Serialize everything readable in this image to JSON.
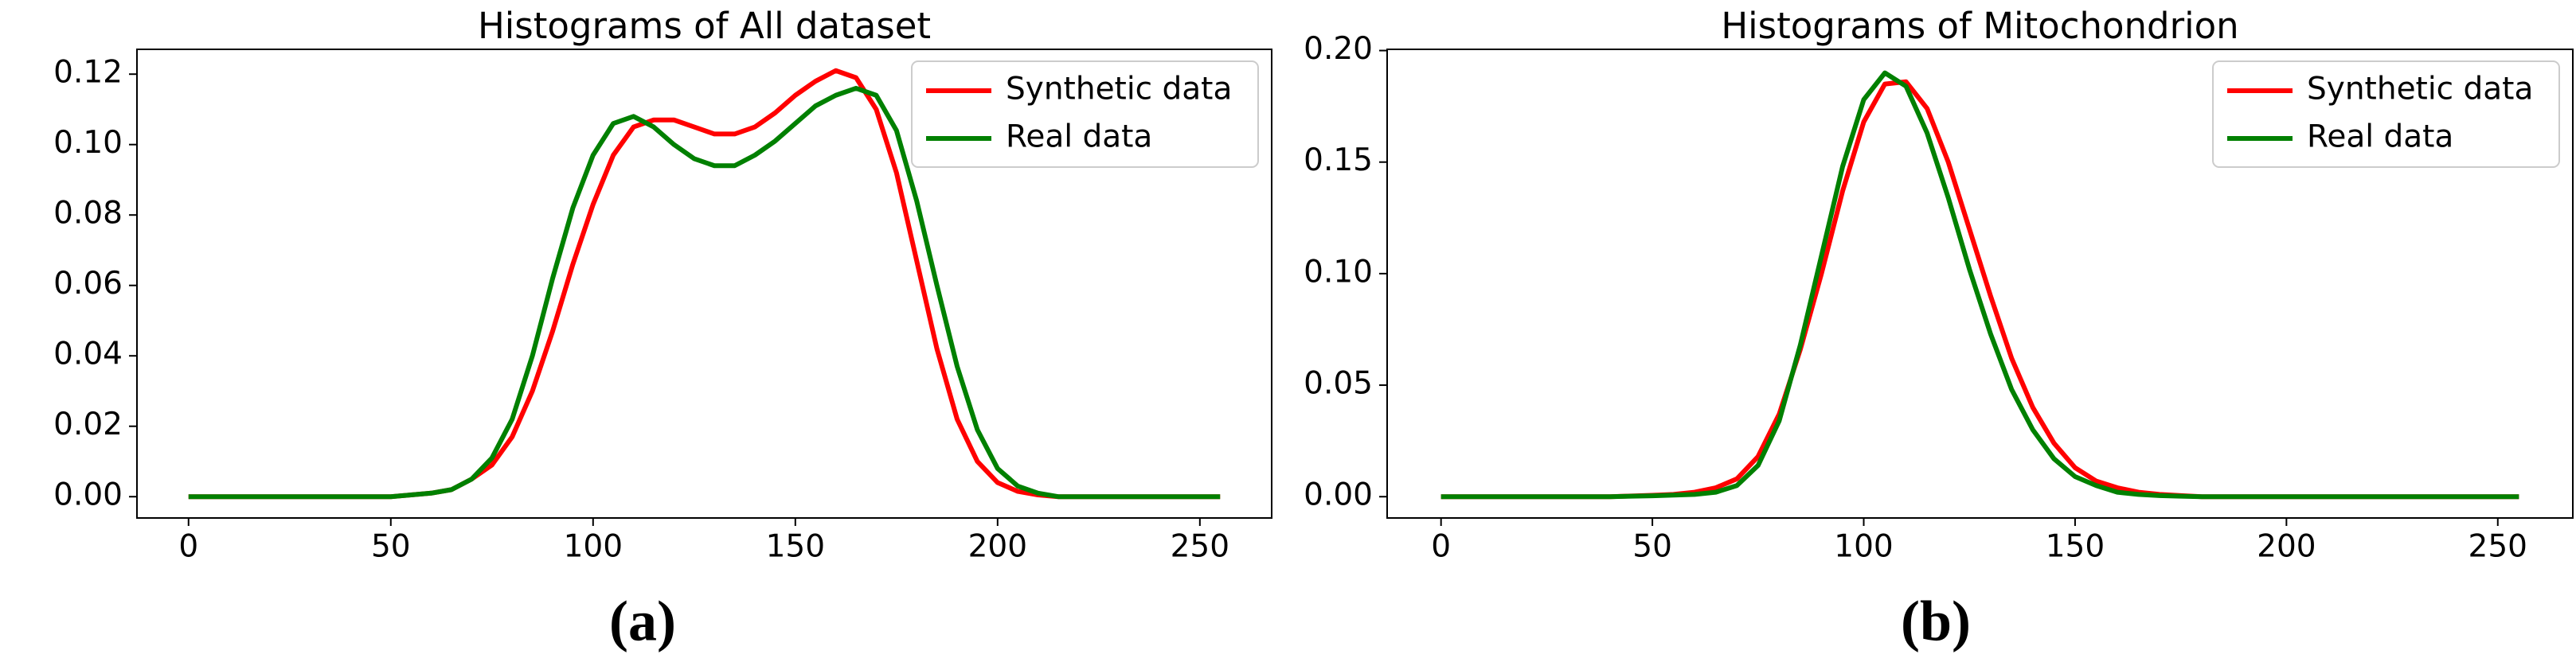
{
  "chart_data": [
    {
      "type": "line",
      "title": "Histograms of All dataset",
      "panel_label": "(a)",
      "x": [
        0,
        5,
        10,
        15,
        20,
        25,
        30,
        35,
        40,
        45,
        50,
        55,
        60,
        65,
        70,
        75,
        80,
        85,
        90,
        95,
        100,
        105,
        110,
        115,
        120,
        125,
        130,
        135,
        140,
        145,
        150,
        155,
        160,
        165,
        170,
        175,
        180,
        185,
        190,
        195,
        200,
        205,
        210,
        215,
        220,
        225,
        230,
        235,
        240,
        245,
        250,
        255
      ],
      "series": [
        {
          "name": "Synthetic data",
          "color": "#ff0000",
          "values": [
            0,
            0,
            0,
            0,
            0,
            0,
            0,
            0,
            0,
            0,
            0,
            0.0005,
            0.001,
            0.002,
            0.005,
            0.009,
            0.017,
            0.03,
            0.047,
            0.066,
            0.083,
            0.097,
            0.105,
            0.107,
            0.107,
            0.105,
            0.103,
            0.103,
            0.105,
            0.109,
            0.114,
            0.118,
            0.121,
            0.119,
            0.11,
            0.092,
            0.067,
            0.042,
            0.022,
            0.01,
            0.004,
            0.0015,
            0.0005,
            0,
            0,
            0,
            0,
            0,
            0,
            0,
            0,
            0
          ]
        },
        {
          "name": "Real data",
          "color": "#008000",
          "values": [
            0,
            0,
            0,
            0,
            0,
            0,
            0,
            0,
            0,
            0,
            0,
            0.0005,
            0.001,
            0.002,
            0.005,
            0.011,
            0.022,
            0.04,
            0.062,
            0.082,
            0.097,
            0.106,
            0.108,
            0.105,
            0.1,
            0.096,
            0.094,
            0.094,
            0.097,
            0.101,
            0.106,
            0.111,
            0.114,
            0.116,
            0.114,
            0.104,
            0.084,
            0.06,
            0.037,
            0.019,
            0.008,
            0.003,
            0.001,
            0,
            0,
            0,
            0,
            0,
            0,
            0,
            0,
            0
          ]
        }
      ],
      "xlim": [
        -12.75,
        267.75
      ],
      "xticks": [
        0,
        50,
        100,
        150,
        200,
        250
      ],
      "ylim": [
        -0.00605,
        0.12705
      ],
      "yticks": [
        {
          "value": 0,
          "label": "0.00"
        },
        {
          "value": 0.02,
          "label": "0.02"
        },
        {
          "value": 0.04,
          "label": "0.04"
        },
        {
          "value": 0.06,
          "label": "0.06"
        },
        {
          "value": 0.08,
          "label": "0.08"
        },
        {
          "value": 0.1,
          "label": "0.10"
        },
        {
          "value": 0.12,
          "label": "0.12"
        }
      ],
      "legend": "upper right"
    },
    {
      "type": "line",
      "title": "Histograms of Mitochondrion",
      "panel_label": "(b)",
      "x": [
        0,
        5,
        10,
        15,
        20,
        25,
        30,
        35,
        40,
        45,
        50,
        55,
        60,
        65,
        70,
        75,
        80,
        85,
        90,
        95,
        100,
        105,
        110,
        115,
        120,
        125,
        130,
        135,
        140,
        145,
        150,
        155,
        160,
        165,
        170,
        175,
        180,
        185,
        190,
        195,
        200,
        205,
        210,
        215,
        220,
        225,
        230,
        235,
        240,
        245,
        250,
        255
      ],
      "series": [
        {
          "name": "Synthetic data",
          "color": "#ff0000",
          "values": [
            0,
            0,
            0,
            0,
            0,
            0,
            0,
            0,
            0,
            0.0003,
            0.0006,
            0.001,
            0.002,
            0.004,
            0.008,
            0.018,
            0.037,
            0.066,
            0.1,
            0.137,
            0.168,
            0.185,
            0.186,
            0.174,
            0.15,
            0.12,
            0.09,
            0.062,
            0.04,
            0.024,
            0.013,
            0.007,
            0.004,
            0.002,
            0.001,
            0.0005,
            0,
            0,
            0,
            0,
            0,
            0,
            0,
            0,
            0,
            0,
            0,
            0,
            0,
            0,
            0,
            0
          ]
        },
        {
          "name": "Real data",
          "color": "#008000",
          "values": [
            0,
            0,
            0,
            0,
            0,
            0,
            0,
            0,
            0,
            0.0002,
            0.0004,
            0.0007,
            0.001,
            0.002,
            0.005,
            0.014,
            0.034,
            0.068,
            0.108,
            0.148,
            0.178,
            0.19,
            0.184,
            0.163,
            0.134,
            0.102,
            0.073,
            0.048,
            0.03,
            0.017,
            0.009,
            0.005,
            0.002,
            0.001,
            0.0005,
            0.0002,
            0,
            0,
            0,
            0,
            0,
            0,
            0,
            0,
            0,
            0,
            0,
            0,
            0,
            0,
            0,
            0
          ]
        }
      ],
      "xlim": [
        -12.75,
        267.75
      ],
      "xticks": [
        0,
        50,
        100,
        150,
        200,
        250
      ],
      "ylim": [
        -0.00955,
        0.20055
      ],
      "yticks": [
        {
          "value": 0,
          "label": "0.00"
        },
        {
          "value": 0.05,
          "label": "0.05"
        },
        {
          "value": 0.1,
          "label": "0.10"
        },
        {
          "value": 0.15,
          "label": "0.15"
        },
        {
          "value": 0.2,
          "label": "0.20"
        }
      ],
      "legend": "upper right"
    }
  ]
}
